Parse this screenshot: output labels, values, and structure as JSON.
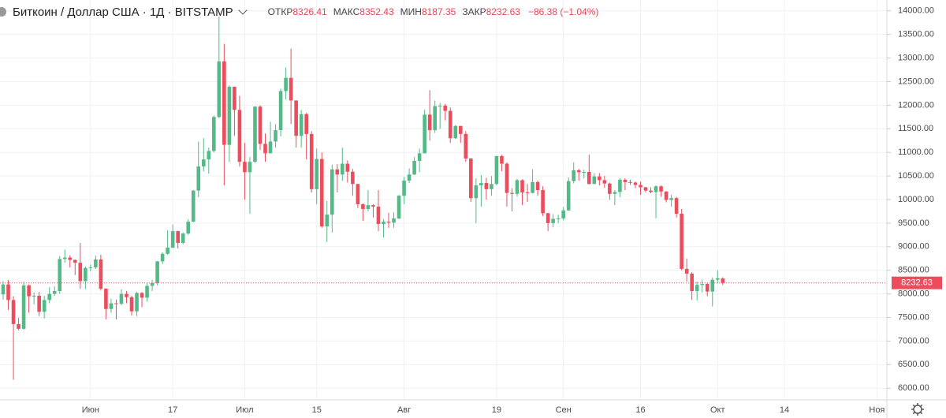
{
  "chart_data": {
    "type": "candlestick",
    "title": "Биткоин / Доллар США · 1Д · BITSTAMP",
    "ohlc_labels": [
      "ОТКР",
      "МАКС",
      "МИН",
      "ЗАКР"
    ],
    "change_label": "−86.38 (−1.04%)",
    "up_color": "#53b987",
    "down_color": "#eb4d5c",
    "grid": true,
    "ylim": [
      5770,
      14230
    ],
    "yticks": [
      {
        "value": 6000,
        "label": "6000.00"
      },
      {
        "value": 6500,
        "label": "6500.00"
      },
      {
        "value": 7000,
        "label": "7000.00"
      },
      {
        "value": 7500,
        "label": "7500.00"
      },
      {
        "value": 8000,
        "label": "8000.00"
      },
      {
        "value": 8500,
        "label": "8500.00"
      },
      {
        "value": 9000,
        "label": "9000.00"
      },
      {
        "value": 9500,
        "label": "9500.00"
      },
      {
        "value": 10000,
        "label": "10000.00"
      },
      {
        "value": 10500,
        "label": "10500.00"
      },
      {
        "value": 11000,
        "label": "11000.00"
      },
      {
        "value": 11500,
        "label": "11500.00"
      },
      {
        "value": 12000,
        "label": "12000.00"
      },
      {
        "value": 12500,
        "label": "12500.00"
      },
      {
        "value": 13000,
        "label": "13000.00"
      },
      {
        "value": 13500,
        "label": "13500.00"
      },
      {
        "value": 14000,
        "label": "14000.00"
      }
    ],
    "categories": [
      null,
      null,
      null,
      null,
      null,
      null,
      null,
      null,
      null,
      null,
      null,
      null,
      null,
      null,
      null,
      null,
      null,
      "Июн",
      null,
      null,
      null,
      null,
      null,
      null,
      null,
      null,
      null,
      null,
      null,
      null,
      null,
      null,
      null,
      "17",
      null,
      null,
      null,
      null,
      null,
      null,
      null,
      null,
      null,
      null,
      null,
      null,
      null,
      "Июл",
      null,
      null,
      null,
      null,
      null,
      null,
      null,
      null,
      null,
      null,
      null,
      null,
      null,
      "15",
      null,
      null,
      null,
      null,
      null,
      null,
      null,
      null,
      null,
      null,
      null,
      null,
      null,
      null,
      null,
      null,
      "Авг",
      null,
      null,
      null,
      null,
      null,
      null,
      null,
      null,
      null,
      null,
      null,
      null,
      null,
      null,
      null,
      null,
      null,
      "19",
      null,
      null,
      null,
      null,
      null,
      null,
      null,
      null,
      null,
      null,
      null,
      null,
      "Сен",
      null,
      null,
      null,
      null,
      null,
      null,
      null,
      null,
      null,
      null,
      null,
      null,
      null,
      null,
      "16",
      null,
      null,
      null,
      null,
      null,
      null,
      null,
      null,
      null,
      null,
      null,
      null,
      null,
      null,
      "Окт",
      null,
      null,
      null,
      null,
      null,
      null,
      null,
      null,
      null,
      null,
      null,
      null,
      "14",
      null,
      null,
      null,
      null,
      null,
      null,
      null,
      null,
      null,
      null,
      null,
      null,
      null,
      null,
      null,
      null,
      null,
      "Ноя"
    ],
    "ohlc": [
      [
        7990,
        8270,
        7880,
        8200
      ],
      [
        8200,
        8290,
        7660,
        7870
      ],
      [
        7870,
        7950,
        6178,
        7360
      ],
      [
        7360,
        7490,
        7230,
        7260
      ],
      [
        7260,
        8260,
        7240,
        8180
      ],
      [
        8180,
        8200,
        7600,
        7950
      ],
      [
        7950,
        8030,
        7780,
        7960
      ],
      [
        7960,
        8040,
        7530,
        7620
      ],
      [
        7620,
        7960,
        7480,
        7870
      ],
      [
        7870,
        8140,
        7800,
        8000
      ],
      [
        8000,
        8160,
        7960,
        8060
      ],
      [
        8060,
        8800,
        8000,
        8740
      ],
      [
        8740,
        8940,
        8660,
        8770
      ],
      [
        8770,
        8820,
        8560,
        8720
      ],
      [
        8720,
        8730,
        8400,
        8660
      ],
      [
        8660,
        9080,
        8110,
        8270
      ],
      [
        8270,
        8580,
        8100,
        8550
      ],
      [
        8550,
        8620,
        8480,
        8560
      ],
      [
        8560,
        8810,
        8530,
        8730
      ],
      [
        8730,
        8830,
        8070,
        8110
      ],
      [
        8110,
        8120,
        7460,
        7680
      ],
      [
        7680,
        7900,
        7600,
        7800
      ],
      [
        7800,
        7880,
        7460,
        7790
      ],
      [
        7790,
        8100,
        7760,
        8000
      ],
      [
        8000,
        8060,
        7800,
        7930
      ],
      [
        7930,
        7960,
        7540,
        7630
      ],
      [
        7630,
        8040,
        7530,
        8020
      ],
      [
        8020,
        8040,
        7720,
        7920
      ],
      [
        7920,
        8230,
        7840,
        8170
      ],
      [
        8170,
        8300,
        8060,
        8230
      ],
      [
        8230,
        8700,
        8180,
        8690
      ],
      [
        8690,
        8880,
        8630,
        8850
      ],
      [
        8850,
        9350,
        8830,
        8980
      ],
      [
        8980,
        9470,
        8970,
        9330
      ],
      [
        9330,
        9340,
        8960,
        9080
      ],
      [
        9080,
        9300,
        9050,
        9280
      ],
      [
        9280,
        9580,
        9250,
        9530
      ],
      [
        9530,
        10200,
        9520,
        10190
      ],
      [
        10190,
        11230,
        10050,
        10700
      ],
      [
        10700,
        11300,
        10600,
        10850
      ],
      [
        10850,
        11100,
        10550,
        11030
      ],
      [
        11030,
        11780,
        11000,
        11750
      ],
      [
        11750,
        13880,
        11720,
        12930
      ],
      [
        12930,
        13300,
        10300,
        11160
      ],
      [
        11160,
        12420,
        10800,
        12390
      ],
      [
        12390,
        12400,
        11350,
        11900
      ],
      [
        11900,
        12200,
        10700,
        10800
      ],
      [
        10800,
        11200,
        10000,
        10580
      ],
      [
        10580,
        10900,
        9700,
        10800
      ],
      [
        10800,
        11980,
        10780,
        11970
      ],
      [
        11970,
        12000,
        11050,
        11180
      ],
      [
        11180,
        11400,
        10800,
        10980
      ],
      [
        10980,
        11650,
        10980,
        11230
      ],
      [
        11230,
        11600,
        11100,
        11470
      ],
      [
        11470,
        12350,
        11340,
        12300
      ],
      [
        12300,
        12800,
        12120,
        12580
      ],
      [
        12580,
        13200,
        11600,
        12100
      ],
      [
        12100,
        12100,
        11100,
        11350
      ],
      [
        11350,
        11900,
        11100,
        11810
      ],
      [
        11810,
        11840,
        10850,
        11390
      ],
      [
        11390,
        11450,
        10150,
        10220
      ],
      [
        10220,
        11080,
        9900,
        10860
      ],
      [
        10860,
        11000,
        9400,
        9430
      ],
      [
        9430,
        9970,
        9100,
        9680
      ],
      [
        9680,
        10740,
        9300,
        10640
      ],
      [
        10640,
        10750,
        10150,
        10530
      ],
      [
        10530,
        11100,
        10400,
        10760
      ],
      [
        10760,
        10830,
        10360,
        10590
      ],
      [
        10590,
        10650,
        10080,
        10330
      ],
      [
        10330,
        10330,
        9820,
        9900
      ],
      [
        9900,
        9920,
        9550,
        9800
      ],
      [
        9800,
        10200,
        9750,
        9880
      ],
      [
        9880,
        9900,
        9620,
        9850
      ],
      [
        9850,
        10200,
        9330,
        9480
      ],
      [
        9480,
        9580,
        9200,
        9530
      ],
      [
        9530,
        9720,
        9400,
        9510
      ],
      [
        9510,
        9730,
        9400,
        9600
      ],
      [
        9600,
        10100,
        9580,
        10080
      ],
      [
        10080,
        10480,
        9900,
        10400
      ],
      [
        10400,
        10660,
        10350,
        10530
      ],
      [
        10530,
        10900,
        10520,
        10820
      ],
      [
        10820,
        11080,
        10580,
        10980
      ],
      [
        10980,
        11900,
        10980,
        11800
      ],
      [
        11800,
        12320,
        11250,
        11470
      ],
      [
        11470,
        12100,
        11410,
        11980
      ],
      [
        11980,
        12050,
        11500,
        11990
      ],
      [
        11990,
        12030,
        11680,
        11880
      ],
      [
        11880,
        11950,
        11200,
        11300
      ],
      [
        11300,
        11580,
        11280,
        11560
      ],
      [
        11560,
        11560,
        11200,
        11390
      ],
      [
        11390,
        11450,
        10800,
        10870
      ],
      [
        10870,
        10880,
        9950,
        10030
      ],
      [
        10030,
        10450,
        9500,
        10300
      ],
      [
        10300,
        10520,
        9850,
        10350
      ],
      [
        10350,
        10460,
        10000,
        10220
      ],
      [
        10220,
        10500,
        10080,
        10330
      ],
      [
        10330,
        10930,
        10300,
        10920
      ],
      [
        10920,
        10950,
        10600,
        10760
      ],
      [
        10760,
        10790,
        9850,
        10140
      ],
      [
        10140,
        10240,
        9750,
        10120
      ],
      [
        10120,
        10440,
        10060,
        10410
      ],
      [
        10410,
        10430,
        9880,
        10150
      ],
      [
        10150,
        10330,
        9950,
        10140
      ],
      [
        10140,
        10640,
        10130,
        10370
      ],
      [
        10370,
        10400,
        10080,
        10200
      ],
      [
        10200,
        10280,
        9650,
        9710
      ],
      [
        9710,
        9720,
        9330,
        9500
      ],
      [
        9500,
        9690,
        9410,
        9590
      ],
      [
        9590,
        9680,
        9500,
        9600
      ],
      [
        9600,
        9840,
        9560,
        9770
      ],
      [
        9770,
        10470,
        9760,
        10390
      ],
      [
        10390,
        10790,
        10340,
        10620
      ],
      [
        10620,
        10650,
        10400,
        10580
      ],
      [
        10580,
        10630,
        10450,
        10585
      ],
      [
        10585,
        10950,
        10320,
        10330
      ],
      [
        10330,
        10560,
        10330,
        10490
      ],
      [
        10490,
        10560,
        10300,
        10410
      ],
      [
        10410,
        10500,
        10250,
        10340
      ],
      [
        10340,
        10360,
        10000,
        10120
      ],
      [
        10120,
        10200,
        9880,
        10160
      ],
      [
        10160,
        10450,
        10050,
        10420
      ],
      [
        10420,
        10450,
        10200,
        10370
      ],
      [
        10370,
        10420,
        10310,
        10360
      ],
      [
        10360,
        10380,
        10240,
        10310
      ],
      [
        10310,
        10380,
        10100,
        10260
      ],
      [
        10260,
        10270,
        10150,
        10190
      ],
      [
        10190,
        10260,
        10130,
        10160
      ],
      [
        10160,
        10300,
        9600,
        10280
      ],
      [
        10280,
        10300,
        10060,
        10170
      ],
      [
        10170,
        10180,
        9940,
        9990
      ],
      [
        9990,
        10100,
        9850,
        10030
      ],
      [
        10030,
        10060,
        9620,
        9700
      ],
      [
        9700,
        9800,
        8500,
        8530
      ],
      [
        8530,
        8750,
        8260,
        8430
      ],
      [
        8430,
        8460,
        7870,
        8060
      ],
      [
        8060,
        8260,
        7860,
        8190
      ],
      [
        8190,
        8300,
        8030,
        8210
      ],
      [
        8210,
        8230,
        7950,
        8050
      ],
      [
        8050,
        8350,
        7730,
        8300
      ],
      [
        8300,
        8500,
        8220,
        8330
      ],
      [
        8326.41,
        8352.43,
        8187.35,
        8232.63
      ],
      null,
      null,
      null,
      null,
      null,
      null,
      null,
      null,
      null,
      null,
      null,
      null,
      null,
      null,
      null,
      null,
      null,
      null,
      null,
      null,
      null,
      null,
      null,
      null,
      null,
      null,
      null,
      null,
      null,
      null
    ]
  }
}
